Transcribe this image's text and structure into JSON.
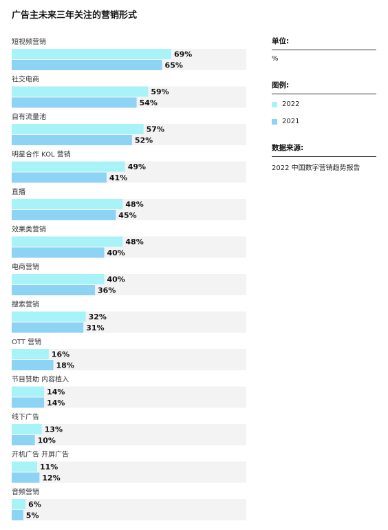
{
  "title": "广告主未来三年关注的营销形式",
  "unit_label": "单位:",
  "unit_value": "%",
  "legend_label": "图例:",
  "source_label": "数据来源:",
  "source_value": "2022 中国数字营销趋势报告",
  "colors": {
    "2022": "#a8f3f7",
    "2021": "#8cd3f4",
    "track": "#f3f3f3"
  },
  "chart_data": {
    "type": "bar",
    "orientation": "horizontal",
    "unit": "%",
    "categories": [
      "短视频营销",
      "社交电商",
      "自有流量池",
      "明星合作 KOL 营销",
      "直播",
      "效果类营销",
      "电商营销",
      "搜索营销",
      "OTT 营销",
      "节目赞助 内容植入",
      "线下广告",
      "开机广告 开屏广告",
      "音频营销"
    ],
    "series": [
      {
        "name": "2022",
        "values": [
          69,
          59,
          57,
          49,
          48,
          48,
          40,
          32,
          16,
          14,
          13,
          11,
          6
        ]
      },
      {
        "name": "2021",
        "values": [
          65,
          54,
          52,
          41,
          45,
          40,
          36,
          31,
          18,
          14,
          10,
          12,
          5
        ]
      }
    ],
    "xlim": [
      0,
      100
    ],
    "legend": "right",
    "grid": false
  }
}
